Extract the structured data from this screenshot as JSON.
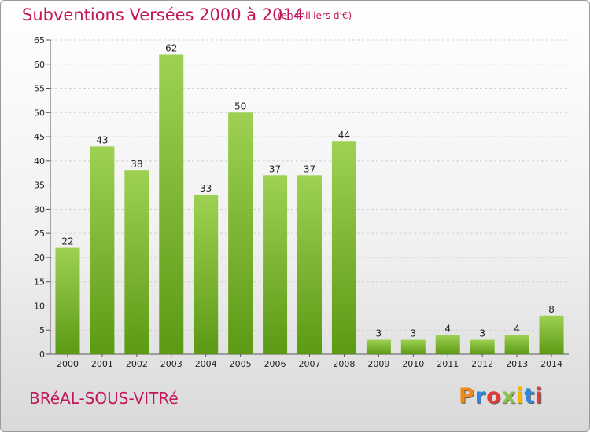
{
  "header": {
    "title": "Subventions Versées 2000 à 2014",
    "unit": "(en milliers d'€)"
  },
  "footer": {
    "commune": "BRéAL-SOUS-VITRé",
    "logo": [
      "P",
      "r",
      "o",
      "x",
      "i",
      "t",
      "i"
    ]
  },
  "colors": {
    "title": "#c2185b",
    "bar_top": "#9ed153",
    "bar_bottom": "#5c9a13",
    "logo": [
      "#ef8a1a",
      "#2e86de",
      "#e53935",
      "#8bc34a",
      "#f4b400",
      "#2e86de",
      "#e53935"
    ]
  },
  "chart_data": {
    "type": "bar",
    "title": "Subventions Versées 2000 à 2014",
    "subtitle": "(en milliers d'€)",
    "categories": [
      "2000",
      "2001",
      "2002",
      "2003",
      "2004",
      "2005",
      "2006",
      "2007",
      "2008",
      "2009",
      "2010",
      "2011",
      "2012",
      "2013",
      "2014"
    ],
    "values": [
      22,
      43,
      38,
      62,
      33,
      50,
      37,
      37,
      44,
      3,
      3,
      4,
      3,
      4,
      8
    ],
    "ylim": [
      0,
      65
    ],
    "yticks": [
      0,
      5,
      10,
      15,
      20,
      25,
      30,
      35,
      40,
      45,
      50,
      55,
      60,
      65
    ],
    "grid": true,
    "xlabel": "",
    "ylabel": ""
  }
}
